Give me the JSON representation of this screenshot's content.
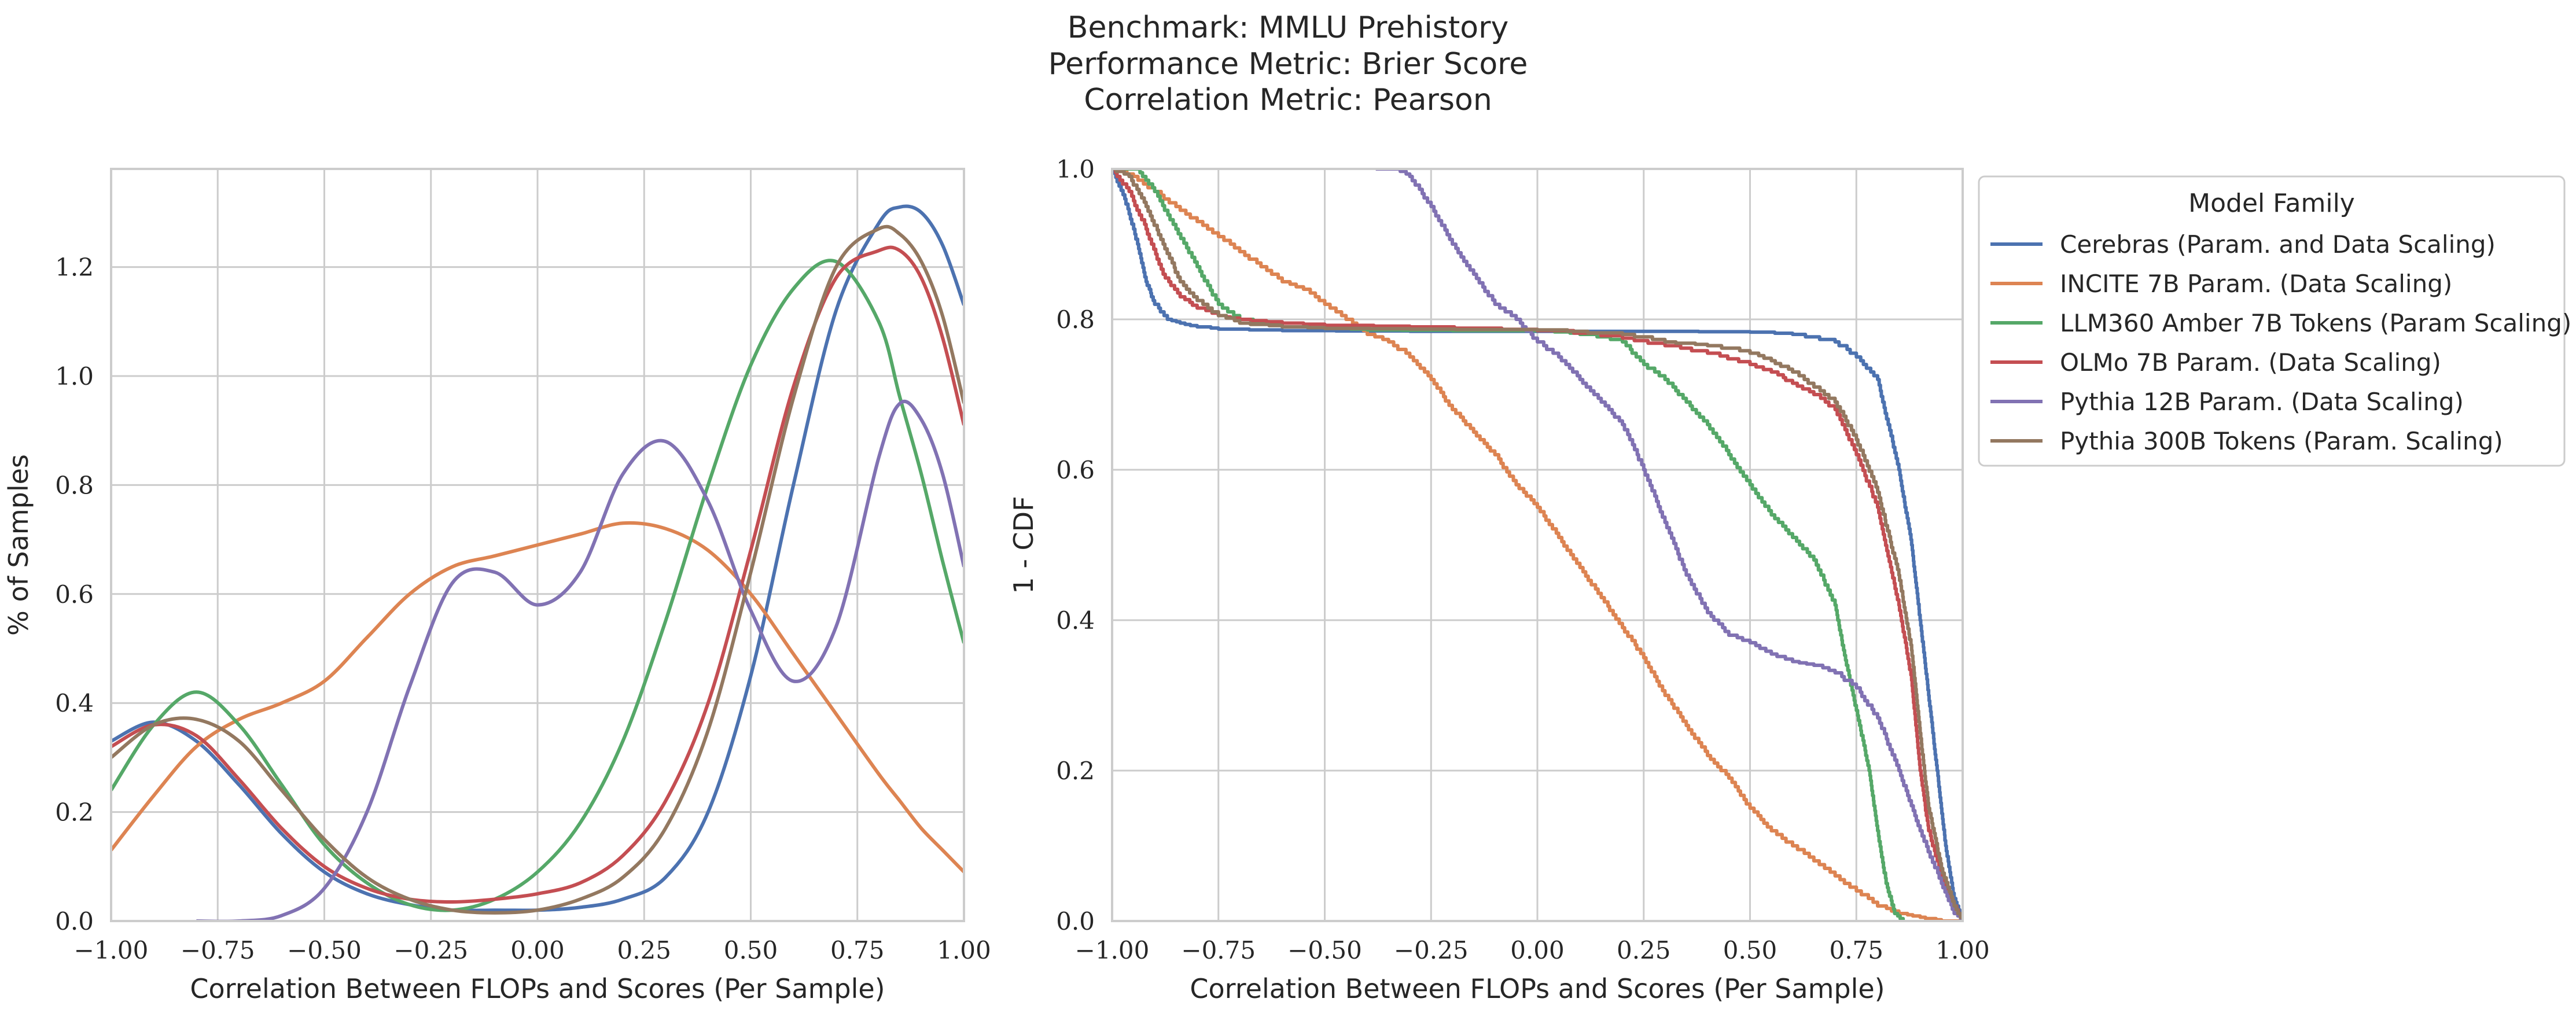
{
  "figure": {
    "title_lines": [
      "Benchmark: MMLU Prehistory",
      "Performance Metric: Brier Score",
      "Correlation Metric: Pearson"
    ]
  },
  "legend": {
    "title": "Model Family",
    "placement": "outside-right of right panel"
  },
  "colors": {
    "Cerebras": "#4c72b0",
    "INCITE": "#dd8452",
    "LLM360": "#55a868",
    "OLMo": "#c44e52",
    "Pythia12B": "#8172b3",
    "Pythia300B": "#937860",
    "grid": "#cccccc",
    "spine": "#cccccc"
  },
  "chart_data": [
    {
      "type": "line",
      "subtype": "kde",
      "xlabel": "Correlation Between FLOPs and Scores (Per Sample)",
      "ylabel": "% of Samples",
      "xlim": [
        -1.0,
        1.0
      ],
      "ylim": [
        0.0,
        1.38
      ],
      "xticks": [
        "−1.00",
        "−0.75",
        "−0.50",
        "−0.25",
        "0.00",
        "0.25",
        "0.50",
        "0.75",
        "1.00"
      ],
      "yticks": [
        "0.0",
        "0.2",
        "0.4",
        "0.6",
        "0.8",
        "1.0",
        "1.2"
      ],
      "grid": true,
      "x": [
        -1.0,
        -0.9,
        -0.8,
        -0.7,
        -0.6,
        -0.5,
        -0.4,
        -0.3,
        -0.2,
        -0.1,
        0.0,
        0.1,
        0.2,
        0.3,
        0.4,
        0.5,
        0.6,
        0.7,
        0.8,
        0.85,
        0.9,
        0.95,
        1.0
      ],
      "series": [
        {
          "name": "Cerebras (Param. and Data Scaling)",
          "key": "Cerebras",
          "values": [
            0.33,
            0.365,
            0.33,
            0.25,
            0.16,
            0.09,
            0.05,
            0.03,
            0.02,
            0.02,
            0.02,
            0.025,
            0.04,
            0.08,
            0.2,
            0.45,
            0.8,
            1.12,
            1.28,
            1.31,
            1.3,
            1.24,
            1.13
          ]
        },
        {
          "name": "INCITE 7B Param. (Data Scaling)",
          "key": "INCITE",
          "values": [
            0.13,
            0.23,
            0.32,
            0.37,
            0.4,
            0.44,
            0.52,
            0.6,
            0.65,
            0.67,
            0.69,
            0.71,
            0.73,
            0.72,
            0.68,
            0.6,
            0.49,
            0.38,
            0.27,
            0.22,
            0.17,
            0.13,
            0.09
          ]
        },
        {
          "name": "LLM360 Amber 7B Tokens (Param Scaling)",
          "key": "LLM360",
          "values": [
            0.24,
            0.36,
            0.42,
            0.36,
            0.25,
            0.14,
            0.07,
            0.03,
            0.02,
            0.04,
            0.09,
            0.18,
            0.33,
            0.55,
            0.8,
            1.02,
            1.16,
            1.21,
            1.1,
            0.96,
            0.82,
            0.66,
            0.51
          ]
        },
        {
          "name": "OLMo 7B Param. (Data Scaling)",
          "key": "OLMo",
          "values": [
            0.32,
            0.36,
            0.34,
            0.26,
            0.17,
            0.1,
            0.06,
            0.04,
            0.035,
            0.04,
            0.05,
            0.07,
            0.12,
            0.22,
            0.4,
            0.68,
            0.98,
            1.18,
            1.23,
            1.23,
            1.18,
            1.07,
            0.91
          ]
        },
        {
          "name": "Pythia 12B Param. (Data Scaling)",
          "key": "Pythia12B",
          "values": [
            null,
            null,
            0.0,
            0.0,
            0.01,
            0.06,
            0.2,
            0.43,
            0.62,
            0.64,
            0.58,
            0.64,
            0.82,
            0.88,
            0.77,
            0.57,
            0.44,
            0.54,
            0.85,
            0.95,
            0.92,
            0.82,
            0.65
          ]
        },
        {
          "name": "Pythia 300B Tokens (Param. Scaling)",
          "key": "Pythia300B",
          "values": [
            0.3,
            0.36,
            0.37,
            0.33,
            0.24,
            0.15,
            0.08,
            0.04,
            0.02,
            0.015,
            0.02,
            0.04,
            0.08,
            0.17,
            0.35,
            0.64,
            0.96,
            1.2,
            1.27,
            1.26,
            1.21,
            1.11,
            0.95
          ]
        }
      ]
    },
    {
      "type": "line",
      "subtype": "survival (1 - CDF) step",
      "xlabel": "Correlation Between FLOPs and Scores (Per Sample)",
      "ylabel": "1 - CDF",
      "xlim": [
        -1.0,
        1.0
      ],
      "ylim": [
        0.0,
        1.0
      ],
      "xticks": [
        "−1.00",
        "−0.75",
        "−0.50",
        "−0.25",
        "0.00",
        "0.25",
        "0.50",
        "0.75",
        "1.00"
      ],
      "yticks": [
        "0.0",
        "0.2",
        "0.4",
        "0.6",
        "0.8",
        "1.0"
      ],
      "grid": true,
      "series": [
        {
          "name": "Cerebras (Param. and Data Scaling)",
          "key": "Cerebras",
          "x": [
            -1.0,
            -0.97,
            -0.94,
            -0.92,
            -0.9,
            -0.87,
            -0.84,
            -0.8,
            -0.75,
            -0.6,
            -0.3,
            0.0,
            0.3,
            0.5,
            0.6,
            0.7,
            0.75,
            0.8,
            0.85,
            0.88,
            0.9,
            0.92,
            0.94,
            0.96,
            0.98,
            1.0
          ],
          "y": [
            1.0,
            0.96,
            0.9,
            0.85,
            0.82,
            0.8,
            0.795,
            0.79,
            0.787,
            0.785,
            0.784,
            0.784,
            0.784,
            0.783,
            0.78,
            0.77,
            0.75,
            0.72,
            0.6,
            0.5,
            0.4,
            0.3,
            0.2,
            0.1,
            0.03,
            0.0
          ]
        },
        {
          "name": "INCITE 7B Param. (Data Scaling)",
          "key": "INCITE",
          "x": [
            -1.0,
            -0.95,
            -0.9,
            -0.85,
            -0.8,
            -0.75,
            -0.7,
            -0.65,
            -0.6,
            -0.55,
            -0.5,
            -0.45,
            -0.4,
            -0.35,
            -0.3,
            -0.25,
            -0.2,
            -0.15,
            -0.1,
            -0.05,
            0.0,
            0.05,
            0.1,
            0.15,
            0.2,
            0.25,
            0.3,
            0.35,
            0.4,
            0.45,
            0.5,
            0.55,
            0.6,
            0.65,
            0.7,
            0.75,
            0.8,
            0.85,
            0.9,
            0.95,
            1.0
          ],
          "y": [
            1.0,
            0.99,
            0.97,
            0.95,
            0.93,
            0.91,
            0.89,
            0.87,
            0.85,
            0.84,
            0.82,
            0.8,
            0.78,
            0.77,
            0.75,
            0.72,
            0.68,
            0.65,
            0.62,
            0.58,
            0.55,
            0.51,
            0.47,
            0.43,
            0.39,
            0.35,
            0.3,
            0.26,
            0.22,
            0.19,
            0.15,
            0.12,
            0.1,
            0.08,
            0.06,
            0.04,
            0.02,
            0.01,
            0.005,
            0.0,
            0.0
          ]
        },
        {
          "name": "LLM360 Amber 7B Tokens (Param Scaling)",
          "key": "LLM360",
          "x": [
            -1.0,
            -0.94,
            -0.9,
            -0.85,
            -0.8,
            -0.75,
            -0.7,
            -0.6,
            -0.5,
            -0.4,
            -0.2,
            0.0,
            0.1,
            0.2,
            0.25,
            0.3,
            0.35,
            0.4,
            0.45,
            0.5,
            0.55,
            0.6,
            0.65,
            0.7,
            0.72,
            0.75,
            0.78,
            0.8,
            0.82,
            0.84,
            0.86
          ],
          "y": [
            1.0,
            1.0,
            0.97,
            0.92,
            0.87,
            0.82,
            0.8,
            0.79,
            0.788,
            0.786,
            0.785,
            0.785,
            0.78,
            0.77,
            0.74,
            0.72,
            0.69,
            0.66,
            0.62,
            0.58,
            0.54,
            0.51,
            0.48,
            0.42,
            0.36,
            0.28,
            0.2,
            0.12,
            0.05,
            0.01,
            0.0
          ]
        },
        {
          "name": "OLMo 7B Param. (Data Scaling)",
          "key": "OLMo",
          "x": [
            -1.0,
            -0.96,
            -0.92,
            -0.88,
            -0.84,
            -0.8,
            -0.75,
            -0.7,
            -0.6,
            -0.5,
            -0.3,
            0.0,
            0.2,
            0.3,
            0.4,
            0.5,
            0.55,
            0.6,
            0.65,
            0.7,
            0.75,
            0.8,
            0.85,
            0.88,
            0.9,
            0.92,
            0.95,
            0.98,
            1.0
          ],
          "y": [
            1.0,
            0.97,
            0.92,
            0.86,
            0.83,
            0.815,
            0.805,
            0.8,
            0.795,
            0.792,
            0.79,
            0.785,
            0.775,
            0.765,
            0.755,
            0.74,
            0.73,
            0.715,
            0.7,
            0.68,
            0.62,
            0.55,
            0.42,
            0.32,
            0.2,
            0.12,
            0.06,
            0.02,
            0.0
          ]
        },
        {
          "name": "Pythia 12B Param. (Data Scaling)",
          "key": "Pythia12B",
          "x": [
            -0.38,
            -0.33,
            -0.3,
            -0.25,
            -0.2,
            -0.15,
            -0.1,
            -0.05,
            0.0,
            0.05,
            0.1,
            0.15,
            0.2,
            0.25,
            0.3,
            0.35,
            0.4,
            0.45,
            0.5,
            0.55,
            0.6,
            0.65,
            0.7,
            0.75,
            0.8,
            0.85,
            0.9,
            0.95,
            0.98,
            1.0
          ],
          "y": [
            1.0,
            1.0,
            0.99,
            0.95,
            0.9,
            0.86,
            0.82,
            0.8,
            0.77,
            0.75,
            0.72,
            0.69,
            0.66,
            0.6,
            0.53,
            0.46,
            0.41,
            0.38,
            0.37,
            0.355,
            0.345,
            0.34,
            0.33,
            0.31,
            0.27,
            0.2,
            0.12,
            0.05,
            0.01,
            0.0
          ]
        },
        {
          "name": "Pythia 300B Tokens (Param. Scaling)",
          "key": "Pythia300B",
          "x": [
            -1.0,
            -0.96,
            -0.92,
            -0.88,
            -0.84,
            -0.8,
            -0.75,
            -0.7,
            -0.6,
            -0.5,
            -0.3,
            0.0,
            0.2,
            0.3,
            0.4,
            0.5,
            0.55,
            0.6,
            0.65,
            0.7,
            0.75,
            0.8,
            0.85,
            0.88,
            0.9,
            0.92,
            0.95,
            0.98,
            1.0
          ],
          "y": [
            1.0,
            0.99,
            0.95,
            0.9,
            0.85,
            0.825,
            0.805,
            0.795,
            0.79,
            0.788,
            0.787,
            0.786,
            0.78,
            0.77,
            0.765,
            0.755,
            0.745,
            0.73,
            0.71,
            0.69,
            0.64,
            0.57,
            0.46,
            0.36,
            0.25,
            0.15,
            0.07,
            0.02,
            0.0
          ]
        }
      ]
    }
  ]
}
